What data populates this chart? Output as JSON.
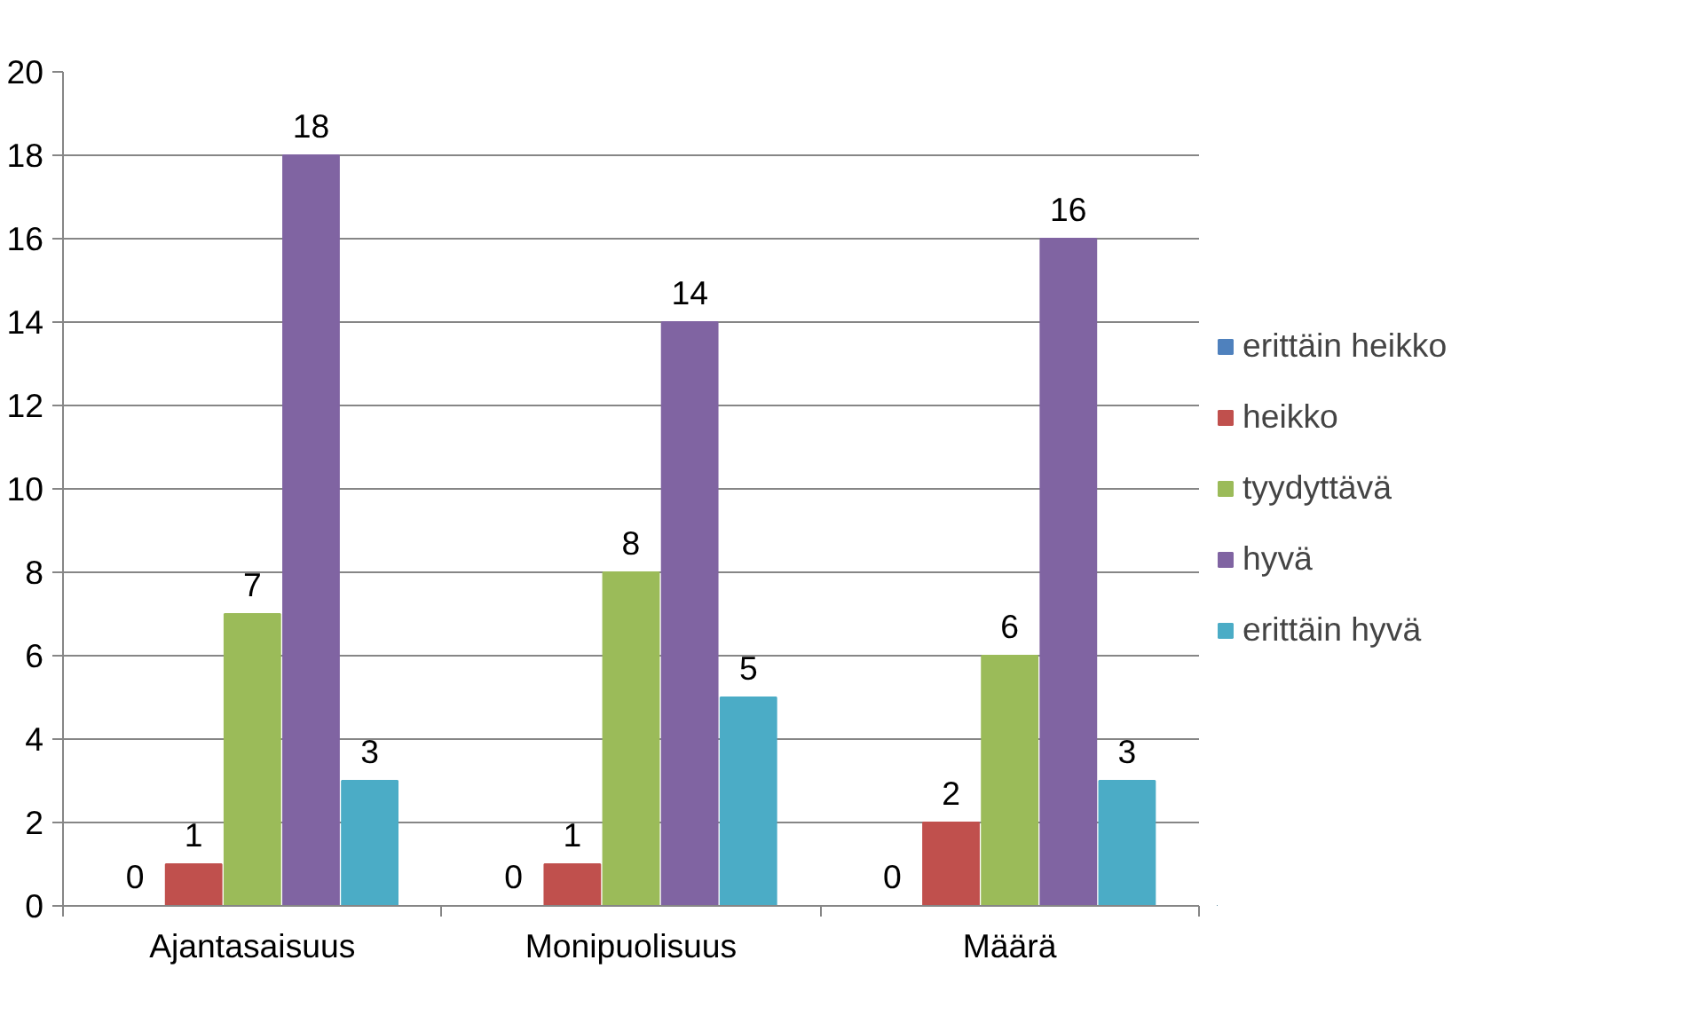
{
  "chart_data": {
    "type": "bar",
    "categories": [
      "Ajantasaisuus",
      "Monipuolisuus",
      "Määrä"
    ],
    "series": [
      {
        "name": "erittäin heikko",
        "color": "#4f81bd",
        "values": [
          0,
          0,
          0
        ]
      },
      {
        "name": "heikko",
        "color": "#c0504d",
        "values": [
          1,
          1,
          2
        ]
      },
      {
        "name": "tyydyttävä",
        "color": "#9bbb59",
        "values": [
          7,
          8,
          6
        ]
      },
      {
        "name": "hyvä",
        "color": "#8064a2",
        "values": [
          18,
          14,
          16
        ]
      },
      {
        "name": "erittäin hyvä",
        "color": "#4bacc6",
        "values": [
          3,
          5,
          3
        ]
      }
    ],
    "ylim": [
      0,
      20
    ],
    "yticks": [
      0,
      2,
      4,
      6,
      8,
      10,
      12,
      14,
      16,
      18,
      20
    ],
    "grid": "y",
    "legend": "right",
    "data_labels": true
  }
}
